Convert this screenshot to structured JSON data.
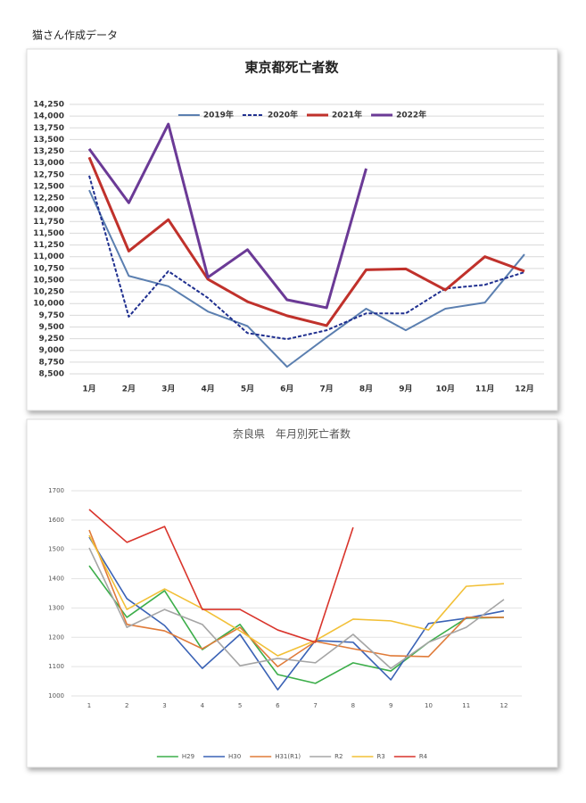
{
  "header": {
    "title": "猫さん作成データ"
  },
  "chart_data": [
    {
      "type": "line",
      "title": "東京都死亡者数",
      "legend": "top",
      "grid": true,
      "categories": [
        "1月",
        "2月",
        "3月",
        "4月",
        "5月",
        "6月",
        "7月",
        "8月",
        "9月",
        "10月",
        "11月",
        "12月"
      ],
      "ylim": [
        8500,
        14250
      ],
      "yticks": [
        {
          "value": 8500,
          "label": "8,500"
        },
        {
          "value": 8750,
          "label": "8,750"
        },
        {
          "value": 9000,
          "label": "9,000"
        },
        {
          "value": 9250,
          "label": "9,250"
        },
        {
          "value": 9500,
          "label": "9,500"
        },
        {
          "value": 9750,
          "label": "9,750"
        },
        {
          "value": 10000,
          "label": "10,000"
        },
        {
          "value": 10250,
          "label": "10,250"
        },
        {
          "value": 10500,
          "label": "10,500"
        },
        {
          "value": 10750,
          "label": "10,750"
        },
        {
          "value": 11000,
          "label": "11,000"
        },
        {
          "value": 11250,
          "label": "11,250"
        },
        {
          "value": 11500,
          "label": "11,500"
        },
        {
          "value": 11750,
          "label": "11,750"
        },
        {
          "value": 12000,
          "label": "12,000"
        },
        {
          "value": 12250,
          "label": "12,250"
        },
        {
          "value": 12500,
          "label": "12,500"
        },
        {
          "value": 12750,
          "label": "12,750"
        },
        {
          "value": 13000,
          "label": "13,000"
        },
        {
          "value": 13250,
          "label": "13,250"
        },
        {
          "value": 13500,
          "label": "13,500"
        },
        {
          "value": 13750,
          "label": "13,750"
        },
        {
          "value": 14000,
          "label": "14,000"
        },
        {
          "value": 14250,
          "label": "14,250"
        }
      ],
      "series": [
        {
          "name": "2019年",
          "color": "#5b7fb0",
          "line_style": "solid",
          "values": [
            12420,
            10590,
            10370,
            9830,
            9520,
            8650,
            9280,
            9890,
            9430,
            9890,
            10020,
            11050
          ]
        },
        {
          "name": "2020年",
          "color": "#1f2f8f",
          "line_style": "dashed",
          "values": [
            12730,
            9720,
            10690,
            10120,
            9370,
            9240,
            9430,
            9790,
            9790,
            10320,
            10400,
            10670
          ]
        },
        {
          "name": "2021年",
          "color": "#c0312b",
          "line_style": "bold",
          "values": [
            13120,
            11120,
            11790,
            10520,
            10040,
            9740,
            9530,
            10720,
            10740,
            10290,
            11000,
            10690
          ]
        },
        {
          "name": "2022年",
          "color": "#6b3a96",
          "line_style": "bold",
          "values": [
            13300,
            12150,
            13830,
            10560,
            11150,
            10080,
            9910,
            12880,
            null,
            null,
            null,
            null
          ]
        }
      ]
    },
    {
      "type": "line",
      "title": "奈良県　年月別死亡者数",
      "legend": "bottom",
      "grid": true,
      "categories": [
        "1",
        "2",
        "3",
        "4",
        "5",
        "6",
        "7",
        "8",
        "9",
        "10",
        "11",
        "12"
      ],
      "ylim": [
        1000,
        1700
      ],
      "yticks": [
        1000,
        1100,
        1200,
        1300,
        1400,
        1500,
        1600,
        1700
      ],
      "series": [
        {
          "name": "H29",
          "color": "#3cae4a",
          "line_style": "solid",
          "values": [
            1444,
            1268,
            1359,
            1158,
            1244,
            1073,
            1043,
            1113,
            1085,
            1183,
            1265,
            1268
          ]
        },
        {
          "name": "H30",
          "color": "#3a62b5",
          "line_style": "solid",
          "values": [
            1542,
            1332,
            1240,
            1094,
            1210,
            1021,
            1189,
            1183,
            1055,
            1247,
            1265,
            1290
          ]
        },
        {
          "name": "H31(R1)",
          "color": "#e07b39",
          "line_style": "solid",
          "values": [
            1566,
            1244,
            1222,
            1161,
            1234,
            1100,
            1186,
            1161,
            1137,
            1134,
            1268,
            1268
          ]
        },
        {
          "name": "R2",
          "color": "#a5a5a5",
          "line_style": "solid",
          "values": [
            1505,
            1234,
            1295,
            1244,
            1103,
            1128,
            1113,
            1210,
            1094,
            1183,
            1234,
            1329
          ]
        },
        {
          "name": "R3",
          "color": "#f2c037",
          "line_style": "solid",
          "values": [
            1548,
            1295,
            1365,
            1298,
            1222,
            1137,
            1189,
            1262,
            1256,
            1225,
            1374,
            1383
          ]
        },
        {
          "name": "R4",
          "color": "#d9342b",
          "line_style": "solid",
          "values": [
            1636,
            1524,
            1578,
            1295,
            1295,
            1225,
            1183,
            1575,
            null,
            null,
            null,
            null
          ]
        }
      ]
    }
  ]
}
